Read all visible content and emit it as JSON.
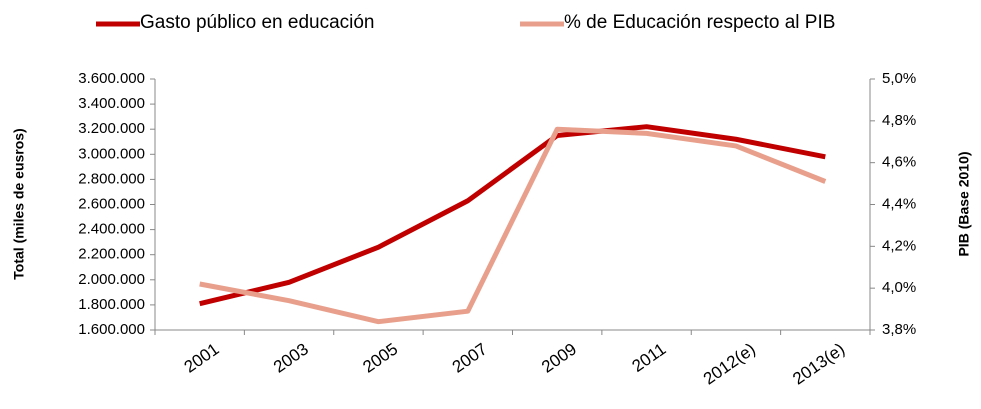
{
  "chart_data": {
    "type": "line",
    "categories": [
      "2001",
      "2003",
      "2005",
      "2007",
      "2009",
      "2011",
      "2012(e)",
      "2013(e)"
    ],
    "series": [
      {
        "name": "Gasto público en educación",
        "color": "#c00000",
        "values": [
          1810000,
          1980000,
          2260000,
          2630000,
          3150000,
          3220000,
          3120000,
          2980000
        ]
      },
      {
        "name": "% de Educación respecto al PIB",
        "color": "#e8a08c",
        "axis": "y2",
        "values": [
          4.02,
          3.94,
          3.84,
          3.89,
          4.76,
          4.74,
          4.68,
          4.51
        ]
      }
    ],
    "y_label": "Total (miles de eusros)",
    "y2_label": "PIB (Base 2010)",
    "ylim": [
      1600000,
      3600000
    ],
    "yticks": [
      {
        "value": 1600000,
        "label": "1.600.000"
      },
      {
        "value": 1800000,
        "label": "1.800.000"
      },
      {
        "value": 2000000,
        "label": "2.000.000"
      },
      {
        "value": 2200000,
        "label": "2.200.000"
      },
      {
        "value": 2400000,
        "label": "2.400.000"
      },
      {
        "value": 2600000,
        "label": "2.600.000"
      },
      {
        "value": 2800000,
        "label": "2.800.000"
      },
      {
        "value": 3000000,
        "label": "3.000.000"
      },
      {
        "value": 3200000,
        "label": "3.200.000"
      },
      {
        "value": 3400000,
        "label": "3.400.000"
      },
      {
        "value": 3600000,
        "label": "3.600.000"
      }
    ],
    "y2lim": [
      3.8,
      5.0
    ],
    "y2ticks": [
      {
        "value": 3.8,
        "label": "3,8%"
      },
      {
        "value": 4.0,
        "label": "4,0%"
      },
      {
        "value": 4.2,
        "label": "4,2%"
      },
      {
        "value": 4.4,
        "label": "4,4%"
      },
      {
        "value": 4.6,
        "label": "4,6%"
      },
      {
        "value": 4.8,
        "label": "4,8%"
      },
      {
        "value": 5.0,
        "label": "5,0%"
      }
    ],
    "legend": "top"
  }
}
